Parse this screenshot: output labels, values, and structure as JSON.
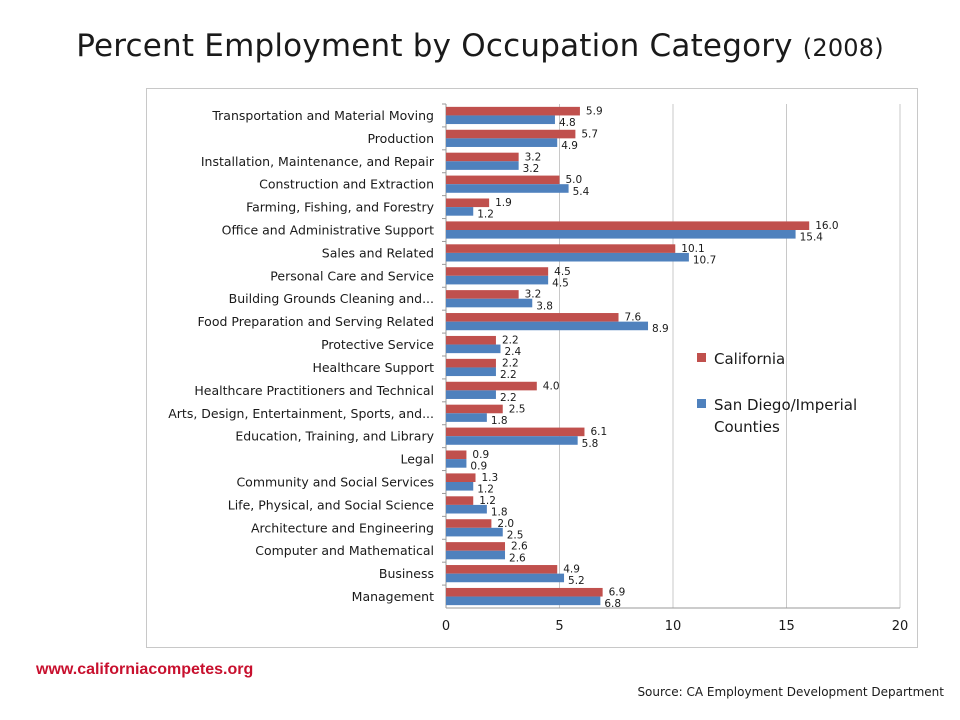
{
  "page": {
    "title_main": "Percent Employment by Occupation Category",
    "title_year": "(2008)",
    "website": "www.californiacompetes.org",
    "source": "Source: CA Employment Development Department"
  },
  "colors": {
    "california": "#c0504d",
    "san_diego": "#4f81bd"
  },
  "chart_data": {
    "type": "bar",
    "orientation": "horizontal",
    "title": "Percent Employment by Occupation Category (2008)",
    "xlabel": "",
    "ylabel": "",
    "xlim": [
      0,
      20
    ],
    "xticks": [
      0,
      5,
      10,
      15,
      20
    ],
    "grid": true,
    "legend_position": "right",
    "categories": [
      "Transportation and Material Moving",
      "Production",
      "Installation, Maintenance, and Repair",
      "Construction and Extraction",
      "Farming, Fishing, and Forestry",
      "Office and Administrative Support",
      "Sales and Related",
      "Personal Care and Service",
      "Building Grounds Cleaning and...",
      "Food Preparation and Serving Related",
      "Protective Service",
      "Healthcare Support",
      "Healthcare Practitioners and Technical",
      "Arts, Design, Entertainment, Sports, and...",
      "Education, Training, and Library",
      "Legal",
      "Community and Social Services",
      "Life, Physical, and Social Science",
      "Architecture and Engineering",
      "Computer and Mathematical",
      "Business",
      "Management"
    ],
    "series": [
      {
        "name": "California",
        "color": "#c0504d",
        "values": [
          5.9,
          5.7,
          3.2,
          5.0,
          1.9,
          16.0,
          10.1,
          4.5,
          3.2,
          7.6,
          2.2,
          2.2,
          4.0,
          2.5,
          6.1,
          0.9,
          1.3,
          1.2,
          2.0,
          2.6,
          4.9,
          6.9
        ],
        "labels": [
          "5.9",
          "5.7",
          "3.2",
          "5.0",
          "1.9",
          "16.0",
          "10.1",
          "4.5",
          "3.2",
          "7.6",
          "2.2",
          "2.2",
          "4.0",
          "2.5",
          "6.1",
          "0.9",
          "1.3",
          "1.2",
          "2.0",
          "2.6",
          "4.9",
          "6.9"
        ]
      },
      {
        "name": "San Diego/Imperial Counties",
        "name_lines": [
          "San Diego/Imperial",
          "Counties"
        ],
        "color": "#4f81bd",
        "values": [
          4.8,
          4.9,
          3.2,
          5.4,
          1.2,
          15.4,
          10.7,
          4.5,
          3.8,
          8.9,
          2.4,
          2.2,
          2.2,
          1.8,
          5.8,
          0.9,
          1.2,
          1.8,
          2.5,
          2.6,
          5.2,
          6.8
        ],
        "labels": [
          "4.8",
          "4.9",
          "3.2",
          "5.4",
          "1.2",
          "15.4",
          "10.7",
          "4.5",
          "3.8",
          "8.9",
          "2.4",
          "2.2",
          "2.2",
          "1.8",
          "5.8",
          "0.9",
          "1.2",
          "1.8",
          "2.5",
          "2.6",
          "5.2",
          "6.8"
        ]
      }
    ]
  }
}
